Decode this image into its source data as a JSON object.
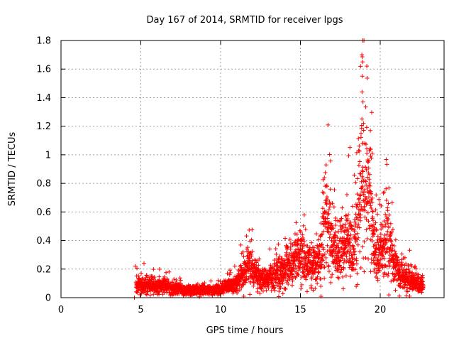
{
  "chart_data": {
    "type": "scatter",
    "title": "Day 167 of 2014, SRMTID for receiver lpgs",
    "xlabel": "GPS time / hours",
    "ylabel": "SRMTID / TECUs",
    "xlim": [
      0,
      24
    ],
    "ylim": [
      0,
      1.8
    ],
    "xticks": [
      0,
      5,
      10,
      15,
      20
    ],
    "yticks": [
      0,
      0.2,
      0.4,
      0.6,
      0.8,
      1,
      1.2,
      1.4,
      1.6,
      1.8
    ],
    "grid": true,
    "marker": "plus",
    "series_color": "#ff0000",
    "series": [
      {
        "name": "lpgs",
        "anchor_points": [
          [
            4.7,
            0.09
          ],
          [
            5.0,
            0.08
          ],
          [
            5.5,
            0.09
          ],
          [
            6.0,
            0.08
          ],
          [
            6.5,
            0.09
          ],
          [
            7.0,
            0.07
          ],
          [
            7.5,
            0.06
          ],
          [
            8.0,
            0.05
          ],
          [
            8.5,
            0.05
          ],
          [
            9.0,
            0.06
          ],
          [
            9.5,
            0.05
          ],
          [
            10.0,
            0.06
          ],
          [
            10.5,
            0.08
          ],
          [
            11.0,
            0.11
          ],
          [
            11.5,
            0.17
          ],
          [
            11.8,
            0.27
          ],
          [
            12.0,
            0.21
          ],
          [
            12.5,
            0.12
          ],
          [
            13.0,
            0.13
          ],
          [
            13.5,
            0.17
          ],
          [
            14.0,
            0.2
          ],
          [
            14.5,
            0.24
          ],
          [
            15.0,
            0.29
          ],
          [
            15.5,
            0.24
          ],
          [
            16.0,
            0.23
          ],
          [
            16.3,
            0.35
          ],
          [
            16.5,
            0.6
          ],
          [
            16.8,
            0.52
          ],
          [
            17.0,
            0.4
          ],
          [
            17.3,
            0.3
          ],
          [
            17.6,
            0.36
          ],
          [
            18.0,
            0.43
          ],
          [
            18.3,
            0.3
          ],
          [
            18.6,
            0.55
          ],
          [
            18.8,
            0.95
          ],
          [
            19.0,
            0.72
          ],
          [
            19.3,
            0.8
          ],
          [
            19.5,
            0.55
          ],
          [
            19.8,
            0.25
          ],
          [
            20.2,
            0.32
          ],
          [
            20.5,
            0.45
          ],
          [
            20.8,
            0.26
          ],
          [
            21.2,
            0.17
          ],
          [
            21.6,
            0.15
          ],
          [
            22.0,
            0.12
          ],
          [
            22.5,
            0.09
          ],
          [
            22.7,
            0.08
          ]
        ],
        "outliers": [
          [
            18.85,
            1.7
          ],
          [
            18.9,
            1.65
          ],
          [
            18.88,
            1.55
          ],
          [
            18.86,
            1.44
          ],
          [
            18.92,
            1.37
          ],
          [
            18.95,
            1.22
          ],
          [
            18.8,
            1.15
          ],
          [
            18.9,
            1.08
          ],
          [
            19.5,
            1.01
          ],
          [
            19.4,
            0.99
          ],
          [
            16.5,
            0.84
          ],
          [
            16.55,
            0.78
          ],
          [
            4.6,
            0.0
          ],
          [
            4.65,
            0.22
          ],
          [
            5.2,
            0.24
          ],
          [
            16.0,
            0.13
          ],
          [
            17.0,
            0.66
          ],
          [
            18.0,
            0.58
          ]
        ],
        "sample_count": 2800
      }
    ]
  }
}
